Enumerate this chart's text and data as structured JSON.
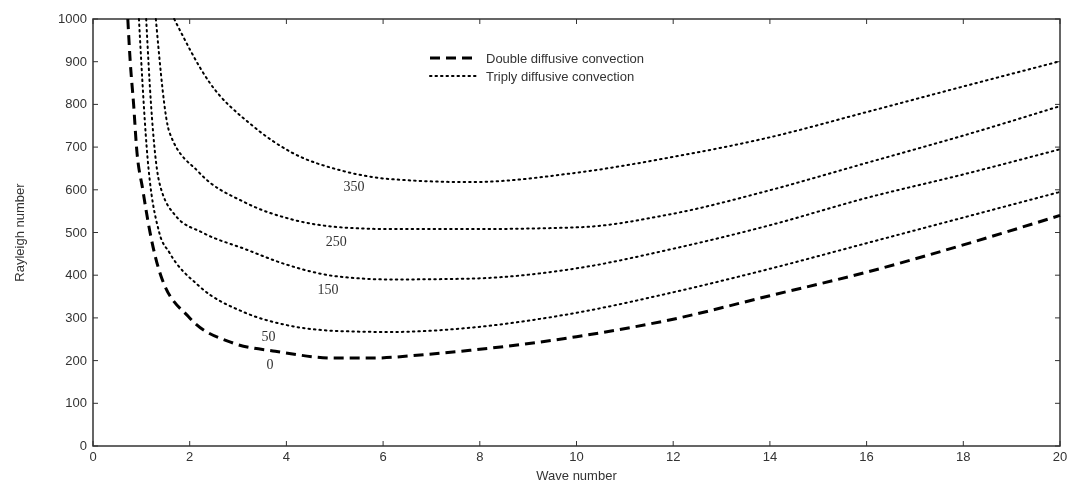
{
  "chart_data": {
    "type": "line",
    "xlabel": "Wave number",
    "ylabel": "Rayleigh number",
    "xlim": [
      0,
      20
    ],
    "ylim": [
      0,
      1000
    ],
    "xticks": [
      0,
      2,
      4,
      6,
      8,
      10,
      12,
      14,
      16,
      18,
      20
    ],
    "yticks": [
      0,
      100,
      200,
      300,
      400,
      500,
      600,
      700,
      800,
      900,
      1000
    ],
    "grid": false,
    "legend": "top",
    "marker": "none",
    "series": [
      {
        "name": "Double diffusive convection",
        "color": "#000000",
        "line_style": "dashed",
        "x": [
          0.72,
          0.77,
          0.84,
          0.9,
          1.03,
          1.18,
          1.4,
          2.0,
          2.9,
          3.77,
          5.0,
          5.8,
          6.85,
          7.8,
          10,
          12,
          14,
          16,
          18,
          20
        ],
        "values": [
          1000,
          900,
          800,
          700,
          600,
          500,
          400,
          300,
          241,
          222,
          206,
          206,
          214,
          224,
          256,
          297,
          352,
          407,
          471,
          540
        ]
      },
      {
        "name": "Triply diffusive convection",
        "color": "#000000",
        "line_style": "dotted",
        "x": [
          0.95,
          1.11,
          1.37,
          1.58,
          2.19,
          3.15,
          3.97,
          5.14,
          6.16,
          7.8,
          10,
          12,
          14,
          16,
          18,
          20
        ],
        "values": [
          1000,
          700,
          500,
          453,
          375,
          312,
          284,
          269,
          267,
          277,
          312,
          360,
          415,
          475,
          535,
          595
        ]
      },
      {
        "color": "#000000",
        "line_style": "dotted",
        "x": [
          1.1,
          1.2,
          1.37,
          1.71,
          2.26,
          3.15,
          3.97,
          5.0,
          6.16,
          7.8,
          10,
          12,
          14,
          16,
          18,
          20
        ],
        "values": [
          1000,
          800,
          618,
          539,
          500,
          461,
          426,
          398,
          390,
          392,
          416,
          462,
          517,
          581,
          636,
          695
        ]
      },
      {
        "color": "#000000",
        "line_style": "dotted",
        "x": [
          1.3,
          1.58,
          2.19,
          3.15,
          4.1,
          5.14,
          6.16,
          7.8,
          10,
          12,
          14,
          16,
          18,
          20
        ],
        "values": [
          1000,
          735,
          641,
          570,
          531,
          512,
          508,
          508,
          512,
          544,
          599,
          663,
          727,
          796
        ]
      },
      {
        "color": "#000000",
        "line_style": "dotted",
        "x": [
          1.68,
          2.4,
          3.29,
          4.1,
          5.14,
          6.16,
          7.8,
          10,
          12,
          14,
          16,
          18,
          20
        ],
        "values": [
          1000,
          853,
          751,
          688,
          645,
          625,
          618,
          640,
          677,
          723,
          782,
          842,
          901
        ]
      }
    ],
    "annotations": [
      {
        "text": "350",
        "x": 5.4,
        "y": 642
      },
      {
        "text": "250",
        "x": 5.03,
        "y": 512
      },
      {
        "text": "150",
        "x": 4.86,
        "y": 400
      },
      {
        "text": "50",
        "x": 3.63,
        "y": 290
      },
      {
        "text": "0",
        "x": 3.66,
        "y": 224
      }
    ]
  }
}
